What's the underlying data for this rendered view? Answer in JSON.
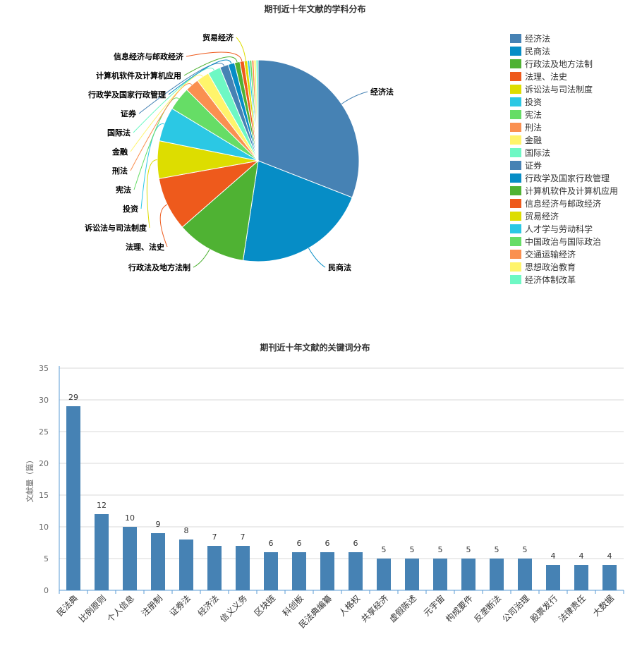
{
  "chart_data": [
    {
      "type": "pie",
      "title": "期刊近十年文献的学科分布",
      "legend_position": "right",
      "series": [
        {
          "name": "经济法",
          "value": 180,
          "color": "#4682b4"
        },
        {
          "name": "民商法",
          "value": 125,
          "color": "#068dc6"
        },
        {
          "name": "行政法及地方法制",
          "value": 65,
          "color": "#4fb233"
        },
        {
          "name": "法理、法史",
          "value": 50,
          "color": "#ee5a1c"
        },
        {
          "name": "诉讼法与司法制度",
          "value": 35,
          "color": "#dddd00"
        },
        {
          "name": "投资",
          "value": 32,
          "color": "#2bc8e4"
        },
        {
          "name": "宪法",
          "value": 22,
          "color": "#66dd66"
        },
        {
          "name": "刑法",
          "value": 13,
          "color": "#fa9050"
        },
        {
          "name": "金融",
          "value": 12,
          "color": "#fff46b"
        },
        {
          "name": "国际法",
          "value": 12,
          "color": "#6ef8c4"
        },
        {
          "name": "证券",
          "value": 8,
          "color": "#4682b4"
        },
        {
          "name": "行政学及国家行政管理",
          "value": 6,
          "color": "#068dc6"
        },
        {
          "name": "计算机软件及计算机应用",
          "value": 5,
          "color": "#4fb233"
        },
        {
          "name": "信息经济与邮政经济",
          "value": 4,
          "color": "#ee5a1c"
        },
        {
          "name": "贸易经济",
          "value": 3,
          "color": "#dddd00"
        },
        {
          "name": "人才学与劳动科学",
          "value": 2,
          "color": "#2bc8e4"
        },
        {
          "name": "中国政治与国际政治",
          "value": 2,
          "color": "#66dd66"
        },
        {
          "name": "交通运输经济",
          "value": 2,
          "color": "#fa9050"
        },
        {
          "name": "思想政治教育",
          "value": 2,
          "color": "#fff46b"
        },
        {
          "name": "经济体制改革",
          "value": 2,
          "color": "#6ef8c4"
        }
      ],
      "labeled_slices": [
        "经济法",
        "民商法",
        "行政法及地方法制",
        "法理、法史",
        "诉讼法与司法制度",
        "投资",
        "宪法",
        "刑法",
        "金融",
        "国际法",
        "证券",
        "行政学及国家行政管理",
        "计算机软件及计算机应用",
        "信息经济与邮政经济",
        "贸易经济"
      ]
    },
    {
      "type": "bar",
      "title": "期刊近十年文献的关键词分布",
      "ylabel": "文献量（篇）",
      "xlabel": "",
      "ylim": [
        0,
        35
      ],
      "yticks": [
        0,
        5,
        10,
        15,
        20,
        25,
        30,
        35
      ],
      "grid": true,
      "bar_color": "#4682b4",
      "categories": [
        "民法典",
        "比例原则",
        "个人信息",
        "注册制",
        "证券法",
        "经济法",
        "信义义务",
        "区块链",
        "科创板",
        "民法典编纂",
        "人格权",
        "共享经济",
        "虚假陈述",
        "元宇宙",
        "构成要件",
        "反垄断法",
        "公司治理",
        "股票发行",
        "法律责任",
        "大数据"
      ],
      "values": [
        29,
        12,
        10,
        9,
        8,
        7,
        7,
        6,
        6,
        6,
        6,
        5,
        5,
        5,
        5,
        5,
        5,
        4,
        4,
        4
      ]
    }
  ]
}
